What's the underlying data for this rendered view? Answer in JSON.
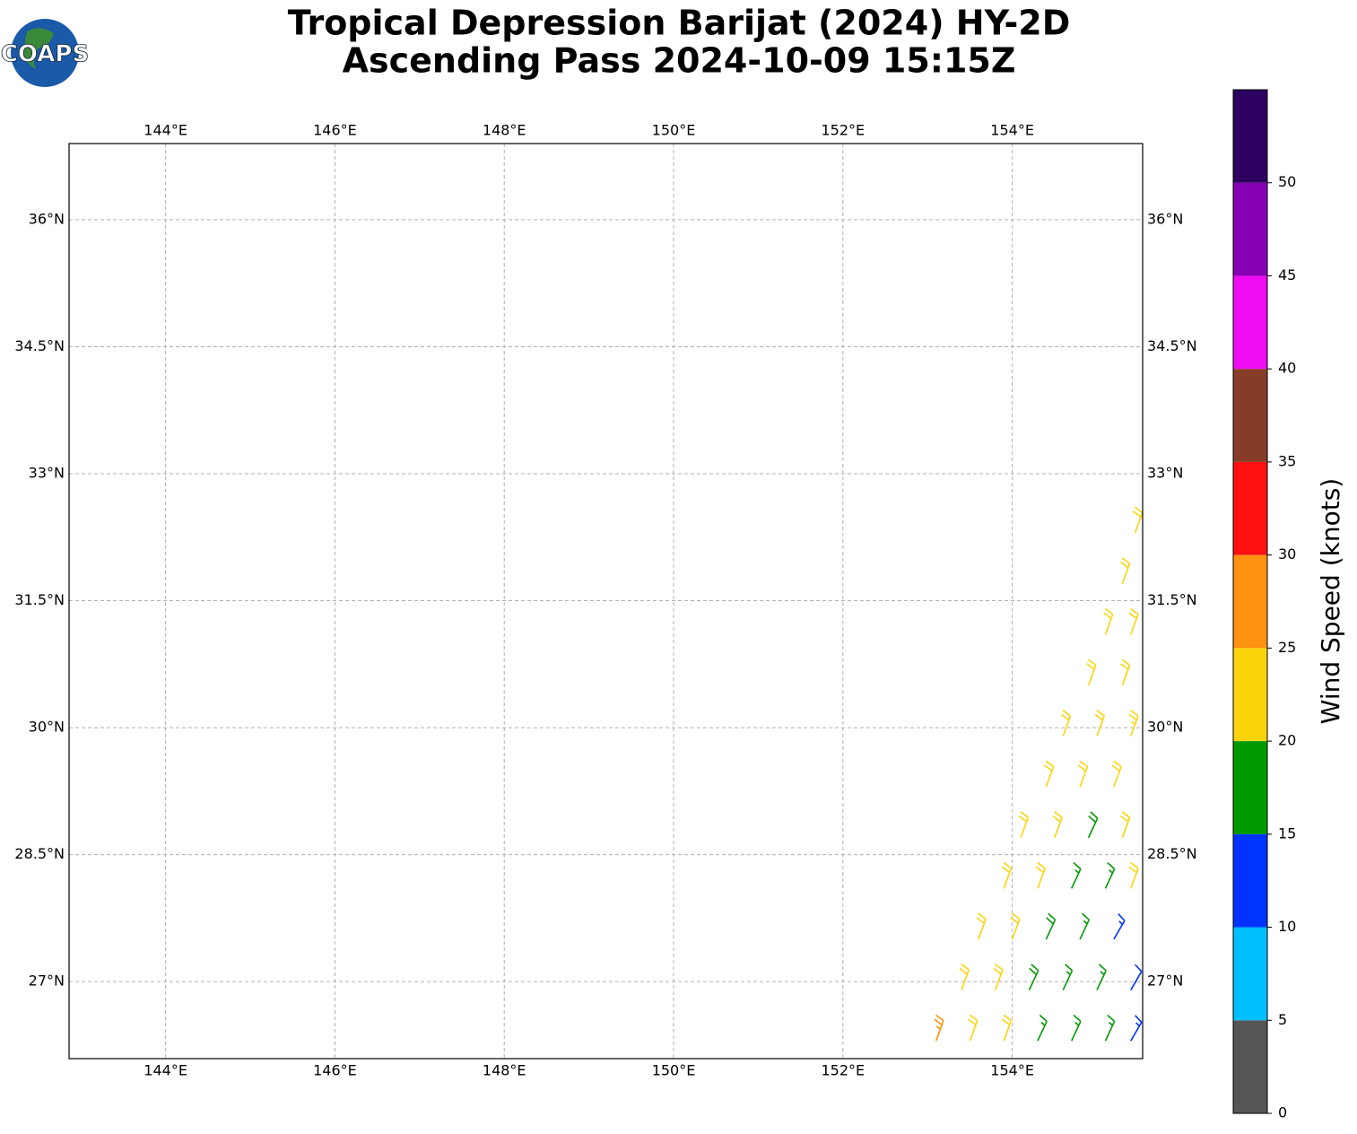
{
  "logo": "COAPS",
  "chart_data": {
    "type": "wind-barbs",
    "title": "Tropical Depression Barijat (2024) HY-2D",
    "subtitle": "Ascending Pass 2024-10-09 15:15Z",
    "xlim": [
      142.86,
      155.54
    ],
    "ylim": [
      26.09,
      36.9
    ],
    "grid": true,
    "xticks": [
      {
        "value": 144,
        "label": "144°E"
      },
      {
        "value": 146,
        "label": "146°E"
      },
      {
        "value": 148,
        "label": "148°E"
      },
      {
        "value": 150,
        "label": "150°E"
      },
      {
        "value": 152,
        "label": "152°E"
      },
      {
        "value": 154,
        "label": "154°E"
      }
    ],
    "yticks": [
      {
        "value": 27,
        "label": "27°N"
      },
      {
        "value": 28.5,
        "label": "28.5°N"
      },
      {
        "value": 30,
        "label": "30°N"
      },
      {
        "value": 31.5,
        "label": "31.5°N"
      },
      {
        "value": 33,
        "label": "33°N"
      },
      {
        "value": 34.5,
        "label": "34.5°N"
      },
      {
        "value": 36,
        "label": "36°N"
      }
    ],
    "colorbar": {
      "label": "Wind Speed (knots)",
      "ylim": [
        0,
        55
      ],
      "bounds": [
        0,
        5,
        10,
        15,
        20,
        25,
        30,
        35,
        40,
        45,
        50,
        55
      ],
      "colors": [
        "#555555",
        "#00bfff",
        "#0033ff",
        "#009900",
        "#fcd40c",
        "#ff9210",
        "#ff1010",
        "#873c2a",
        "#f00cf0",
        "#8700b3",
        "#2d0060"
      ],
      "ticks": [
        0,
        5,
        10,
        15,
        20,
        25,
        30,
        35,
        40,
        45,
        50
      ]
    },
    "barbs": [
      {
        "lon": 153.1,
        "lat": 26.3,
        "speed": 27,
        "direction": 20
      },
      {
        "lon": 153.5,
        "lat": 26.3,
        "speed": 22,
        "direction": 20
      },
      {
        "lon": 153.9,
        "lat": 26.3,
        "speed": 21,
        "direction": 20
      },
      {
        "lon": 154.3,
        "lat": 26.3,
        "speed": 17,
        "direction": 25
      },
      {
        "lon": 154.7,
        "lat": 26.3,
        "speed": 17,
        "direction": 25
      },
      {
        "lon": 155.1,
        "lat": 26.3,
        "speed": 16,
        "direction": 25
      },
      {
        "lon": 155.4,
        "lat": 26.3,
        "speed": 13,
        "direction": 30
      },
      {
        "lon": 153.4,
        "lat": 26.9,
        "speed": 22,
        "direction": 20
      },
      {
        "lon": 153.8,
        "lat": 26.9,
        "speed": 21,
        "direction": 20
      },
      {
        "lon": 154.2,
        "lat": 26.9,
        "speed": 18,
        "direction": 25
      },
      {
        "lon": 154.6,
        "lat": 26.9,
        "speed": 17,
        "direction": 25
      },
      {
        "lon": 155.0,
        "lat": 26.9,
        "speed": 17,
        "direction": 25
      },
      {
        "lon": 155.4,
        "lat": 26.9,
        "speed": 12,
        "direction": 30
      },
      {
        "lon": 153.6,
        "lat": 27.5,
        "speed": 22,
        "direction": 20
      },
      {
        "lon": 154.0,
        "lat": 27.5,
        "speed": 21,
        "direction": 20
      },
      {
        "lon": 154.4,
        "lat": 27.5,
        "speed": 18,
        "direction": 25
      },
      {
        "lon": 154.8,
        "lat": 27.5,
        "speed": 17,
        "direction": 25
      },
      {
        "lon": 155.2,
        "lat": 27.5,
        "speed": 13,
        "direction": 30
      },
      {
        "lon": 153.9,
        "lat": 28.1,
        "speed": 22,
        "direction": 20
      },
      {
        "lon": 154.3,
        "lat": 28.1,
        "speed": 21,
        "direction": 20
      },
      {
        "lon": 154.7,
        "lat": 28.1,
        "speed": 17,
        "direction": 25
      },
      {
        "lon": 155.1,
        "lat": 28.1,
        "speed": 17,
        "direction": 25
      },
      {
        "lon": 155.4,
        "lat": 28.1,
        "speed": 21,
        "direction": 20
      },
      {
        "lon": 154.1,
        "lat": 28.7,
        "speed": 22,
        "direction": 20
      },
      {
        "lon": 154.5,
        "lat": 28.7,
        "speed": 21,
        "direction": 20
      },
      {
        "lon": 154.9,
        "lat": 28.7,
        "speed": 19,
        "direction": 25
      },
      {
        "lon": 155.3,
        "lat": 28.7,
        "speed": 22,
        "direction": 20
      },
      {
        "lon": 154.4,
        "lat": 29.3,
        "speed": 22,
        "direction": 20
      },
      {
        "lon": 154.8,
        "lat": 29.3,
        "speed": 22,
        "direction": 20
      },
      {
        "lon": 155.2,
        "lat": 29.3,
        "speed": 22,
        "direction": 20
      },
      {
        "lon": 154.6,
        "lat": 29.9,
        "speed": 22,
        "direction": 20
      },
      {
        "lon": 155.0,
        "lat": 29.9,
        "speed": 22,
        "direction": 20
      },
      {
        "lon": 155.4,
        "lat": 29.9,
        "speed": 23,
        "direction": 20
      },
      {
        "lon": 154.9,
        "lat": 30.5,
        "speed": 22,
        "direction": 20
      },
      {
        "lon": 155.3,
        "lat": 30.5,
        "speed": 22,
        "direction": 20
      },
      {
        "lon": 155.1,
        "lat": 31.1,
        "speed": 22,
        "direction": 20
      },
      {
        "lon": 155.4,
        "lat": 31.1,
        "speed": 22,
        "direction": 20
      },
      {
        "lon": 155.3,
        "lat": 31.7,
        "speed": 22,
        "direction": 20
      },
      {
        "lon": 155.45,
        "lat": 32.3,
        "speed": 21,
        "direction": 20
      }
    ]
  }
}
